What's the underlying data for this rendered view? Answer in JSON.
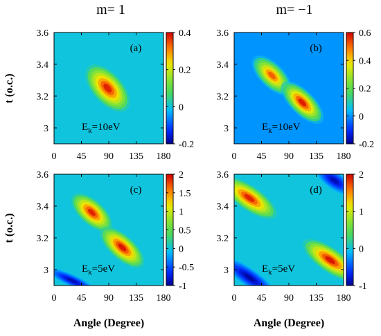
{
  "figure": {
    "column_titles": [
      "m= 1",
      "m= −1"
    ],
    "ylabel": "t (o.c.)",
    "xlabel": "Angle (Degree)"
  },
  "chart_data": [
    {
      "type": "heatmap",
      "panel_label": "(a)",
      "annotation": {
        "base": "E",
        "sub": "k",
        "tail": "=10eV"
      },
      "x_ticks": [
        0,
        45,
        90,
        135,
        180
      ],
      "y_ticks": [
        "3",
        "3.2",
        "3.4",
        "3.6"
      ],
      "xlim": [
        0,
        180
      ],
      "ylim": [
        2.9,
        3.6
      ],
      "colorbar": {
        "min": -0.2,
        "max": 0.4,
        "ticks": [
          "0.4",
          "0.2",
          "0",
          "-0.2"
        ]
      },
      "background_value": 0,
      "features": [
        {
          "angle": 88,
          "t": 3.25,
          "value": 0.38,
          "spread_angle": 25,
          "spread_t": 0.05,
          "orientation_deg": 48
        }
      ]
    },
    {
      "type": "heatmap",
      "panel_label": "(b)",
      "annotation": {
        "base": "E",
        "sub": "k",
        "tail": "=10eV"
      },
      "x_ticks": [
        0,
        45,
        90,
        135,
        180
      ],
      "y_ticks": [
        "3",
        "3.2",
        "3.4",
        "3.6"
      ],
      "xlim": [
        0,
        180
      ],
      "ylim": [
        2.9,
        3.6
      ],
      "colorbar": {
        "min": -0.2,
        "max": 0.6,
        "ticks": [
          "0.6",
          "0.4",
          "0.2",
          "0",
          "-0.2"
        ]
      },
      "background_value": 0,
      "features": [
        {
          "angle": 62,
          "t": 3.33,
          "value": 0.52,
          "spread_angle": 22,
          "spread_t": 0.04,
          "orientation_deg": 45
        },
        {
          "angle": 112,
          "t": 3.16,
          "value": 0.58,
          "spread_angle": 24,
          "spread_t": 0.04,
          "orientation_deg": 45
        }
      ]
    },
    {
      "type": "heatmap",
      "panel_label": "(c)",
      "annotation": {
        "base": "E",
        "sub": "k",
        "tail": "=5eV"
      },
      "x_ticks": [
        0,
        45,
        90,
        135,
        180
      ],
      "y_ticks": [
        "3",
        "3.2",
        "3.4",
        "3.6"
      ],
      "xlim": [
        0,
        180
      ],
      "ylim": [
        2.9,
        3.6
      ],
      "colorbar": {
        "min": -1,
        "max": 2,
        "ticks": [
          "2",
          "1.5",
          "1",
          "0.5",
          "0",
          "-0.5",
          "-1"
        ]
      },
      "background_value": 0,
      "features": [
        {
          "angle": 62,
          "t": 3.36,
          "value": 1.9,
          "spread_angle": 22,
          "spread_t": 0.04,
          "orientation_deg": 42
        },
        {
          "angle": 112,
          "t": 3.14,
          "value": 1.95,
          "spread_angle": 24,
          "spread_t": 0.04,
          "orientation_deg": 42
        },
        {
          "angle": 30,
          "t": 2.93,
          "value": -0.9,
          "spread_angle": 25,
          "spread_t": 0.02,
          "orientation_deg": 25
        }
      ]
    },
    {
      "type": "heatmap",
      "panel_label": "(d)",
      "annotation": {
        "base": "E",
        "sub": "k",
        "tail": "=5eV"
      },
      "x_ticks": [
        0,
        45,
        90,
        135,
        180
      ],
      "y_ticks": [
        "3",
        "3.2",
        "3.4",
        "3.6"
      ],
      "xlim": [
        0,
        180
      ],
      "ylim": [
        2.9,
        3.6
      ],
      "colorbar": {
        "min": -1,
        "max": 2,
        "ticks": [
          "2",
          "1",
          "0",
          "-1"
        ]
      },
      "background_value": 0,
      "features": [
        {
          "angle": 25,
          "t": 3.45,
          "value": 1.9,
          "spread_angle": 28,
          "spread_t": 0.04,
          "orientation_deg": 35
        },
        {
          "angle": 158,
          "t": 3.06,
          "value": 1.95,
          "spread_angle": 28,
          "spread_t": 0.04,
          "orientation_deg": 35
        },
        {
          "angle": 25,
          "t": 2.95,
          "value": -0.95,
          "spread_angle": 30,
          "spread_t": 0.03,
          "orientation_deg": 35
        },
        {
          "angle": 165,
          "t": 3.56,
          "value": -0.9,
          "spread_angle": 20,
          "spread_t": 0.03,
          "orientation_deg": 35
        }
      ]
    }
  ]
}
